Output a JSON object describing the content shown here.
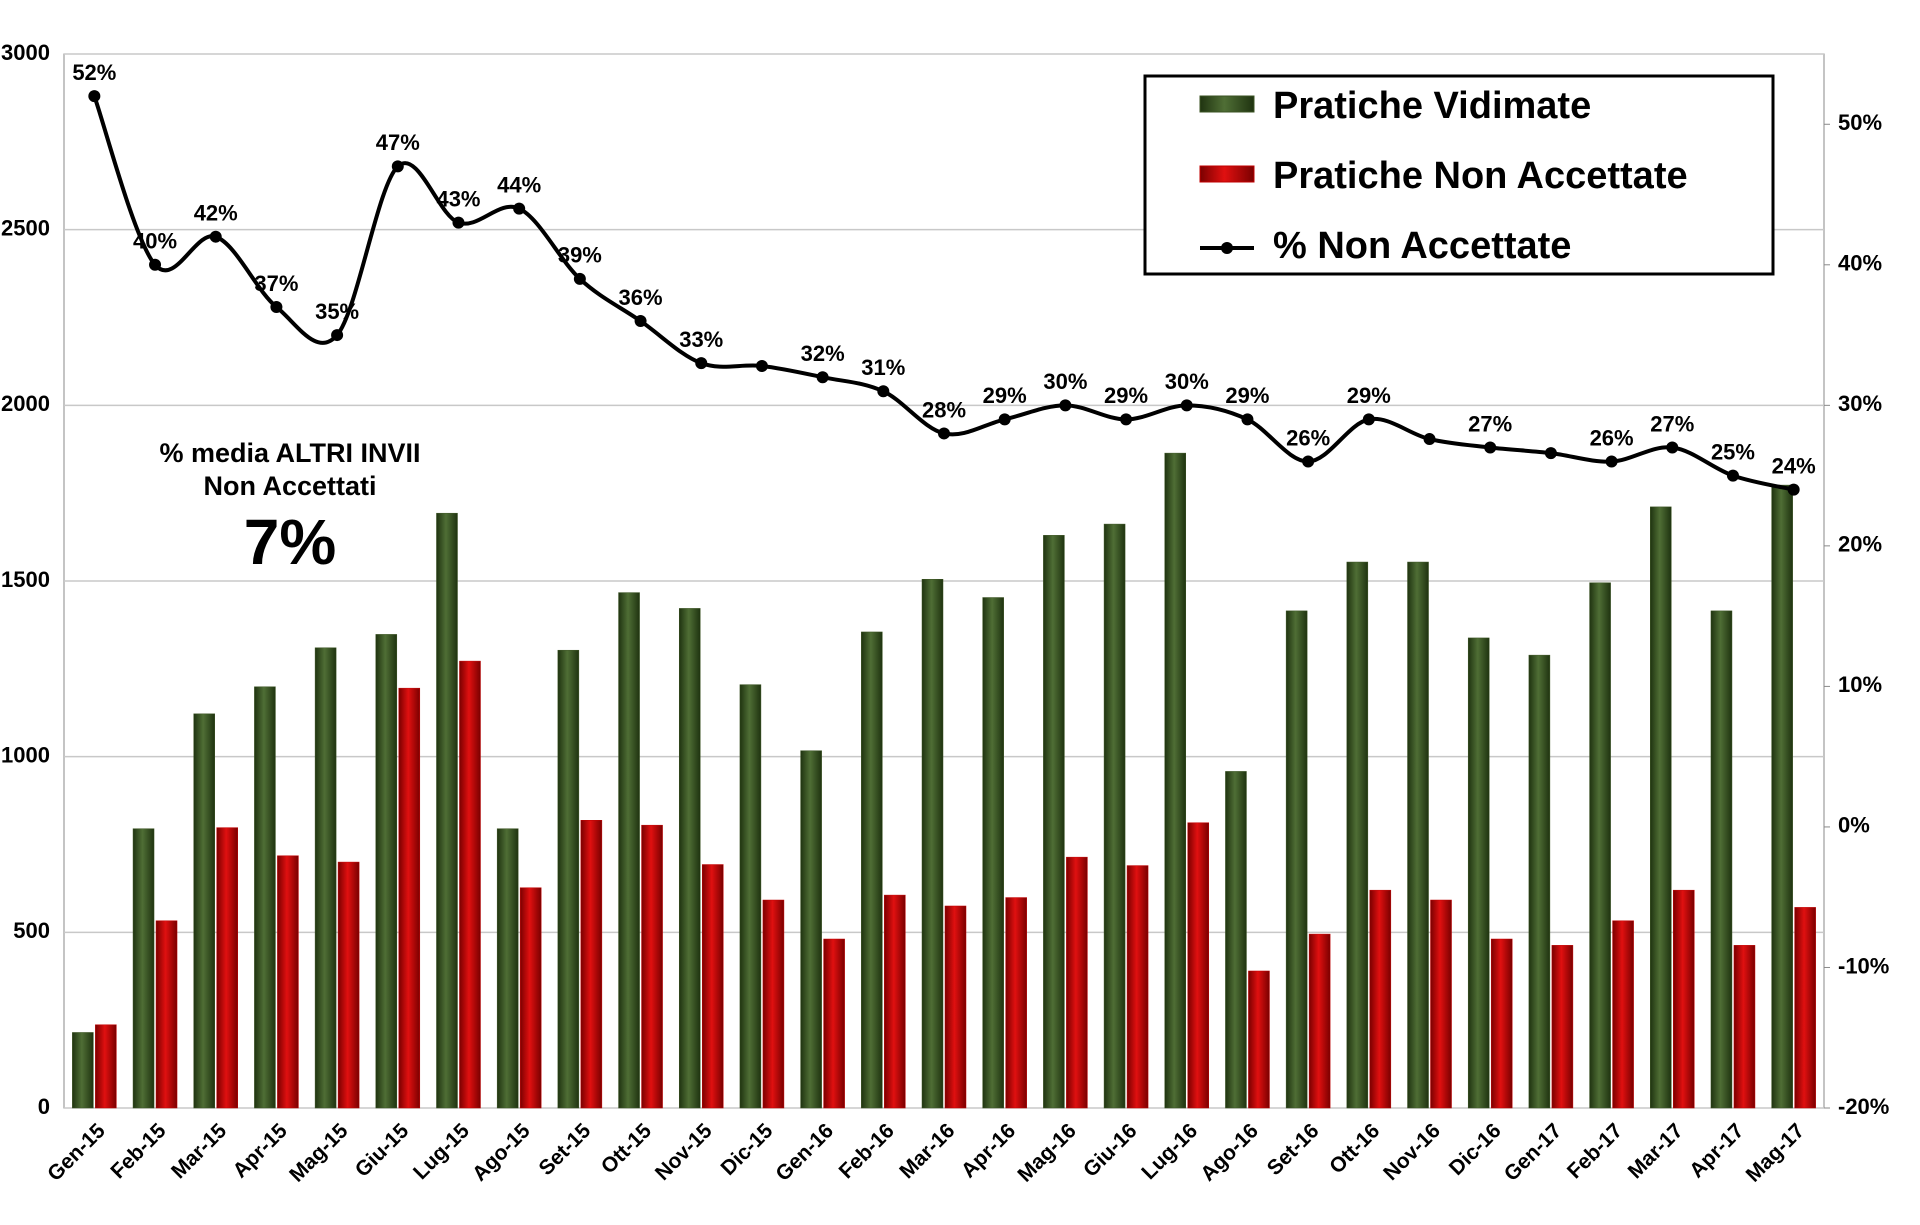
{
  "chart_data": {
    "type": "bar-line",
    "categories": [
      "Gen-15",
      "Feb-15",
      "Mar-15",
      "Apr-15",
      "Mag-15",
      "Giu-15",
      "Lug-15",
      "Ago-15",
      "Set-15",
      "Ott-15",
      "Nov-15",
      "Dic-15",
      "Gen-16",
      "Feb-16",
      "Mar-16",
      "Apr-16",
      "Mag-16",
      "Giu-16",
      "Lug-16",
      "Ago-16",
      "Set-16",
      "Ott-16",
      "Nov-16",
      "Dic-16",
      "Gen-17",
      "Feb-17",
      "Mar-17",
      "Apr-17",
      "Mag-17"
    ],
    "series": [
      {
        "name": "Pratiche Vidimate",
        "color": "#3b5323",
        "type": "bar",
        "values": [
          215,
          795,
          1122,
          1199,
          1310,
          1348,
          1693,
          795,
          1303,
          1467,
          1422,
          1205,
          1017,
          1355,
          1505,
          1453,
          1630,
          1662,
          1864,
          958,
          1415,
          1554,
          1554,
          1338,
          1289,
          1495,
          1711,
          1415,
          1773
        ]
      },
      {
        "name": "Pratiche Non Accettate",
        "color": "#c00000",
        "type": "bar",
        "values": [
          237,
          533,
          798,
          718,
          700,
          1195,
          1272,
          627,
          819,
          805,
          693,
          592,
          481,
          606,
          575,
          599,
          714,
          690,
          812,
          390,
          495,
          620,
          592,
          481,
          463,
          533,
          620,
          463,
          571
        ]
      },
      {
        "name": "% Non Accettate",
        "color": "#000000",
        "type": "line",
        "axis": "y2",
        "values": [
          52,
          40,
          42,
          37,
          35,
          47,
          43,
          44,
          39,
          36,
          33,
          32.8,
          32,
          31,
          28,
          29,
          30,
          29,
          30,
          29,
          26,
          29,
          27.6,
          27,
          26.6,
          26,
          27,
          25,
          24
        ],
        "value_labels": [
          "52%",
          "40%",
          "42%",
          "37%",
          "35%",
          "47%",
          "43%",
          "44%",
          "39%",
          "36%",
          "33%",
          null,
          "32%",
          "31%",
          "28%",
          "29%",
          "30%",
          "29%",
          "30%",
          "29%",
          "26%",
          "29%",
          null,
          "27%",
          null,
          "26%",
          "27%",
          "25%",
          "24%"
        ]
      }
    ],
    "ylim": [
      0,
      3000
    ],
    "yticks": [
      0,
      500,
      1000,
      1500,
      2000,
      2500,
      3000
    ],
    "y2lim": [
      -20,
      55
    ],
    "y2ticks": [
      {
        "value": -20,
        "label": "-20%"
      },
      {
        "value": -10,
        "label": "-10%"
      },
      {
        "value": 0,
        "label": "0%"
      },
      {
        "value": 10,
        "label": "10%"
      },
      {
        "value": 20,
        "label": "20%"
      },
      {
        "value": 30,
        "label": "30%"
      },
      {
        "value": 40,
        "label": "40%"
      },
      {
        "value": 50,
        "label": "50%"
      }
    ],
    "grid": true,
    "legend": "top-right",
    "annotations": [
      "% media ALTRI INVII",
      "Non Accettati",
      "7%"
    ]
  }
}
